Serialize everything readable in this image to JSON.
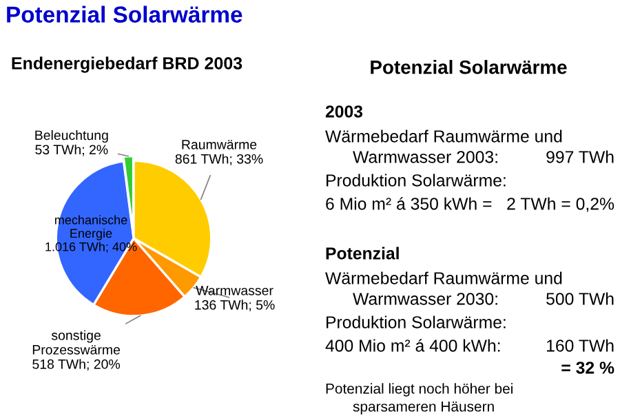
{
  "chart_data": [
    {
      "type": "pie",
      "title": "Potenzial Solarwärme",
      "subtitle": "Endenergiebedarf BRD 2003",
      "categories": [
        "Raumwärme",
        "Warmwasser",
        "sonstige Prozesswärme",
        "mechanische Energie",
        "Beleuchtung"
      ],
      "values": [
        861,
        136,
        518,
        1016,
        53
      ],
      "value_labels": [
        "861 TWh; 33%",
        "136 TWh; 5%",
        "518 TWh; 20%",
        "1.016 TWh; 40%",
        "53 TWh; 2%"
      ],
      "colors": [
        "#ffcc00",
        "#ff9900",
        "#ff6600",
        "#3366ff",
        "#33cc33"
      ]
    },
    {
      "type": "other",
      "title": "Potenzial Solarwärme",
      "annotations": [
        "2003",
        "Wärmebedarf Raumwärme und",
        "Warmwasser 2003:",
        "997 TWh",
        "Produktion Solarwärme:",
        "6 Mio m² á 350 kWh =",
        "2 TWh = 0,2%",
        "Potenzial",
        "Wärmebedarf Raumwärme und",
        "Warmwasser 2030:",
        "500 TWh",
        "Produktion Solarwärme:",
        "400 Mio m² á 400 kWh:",
        "160 TWh",
        "= 32 %",
        "Potenzial liegt noch höher bei",
        "sparsameren Häusern"
      ]
    }
  ]
}
